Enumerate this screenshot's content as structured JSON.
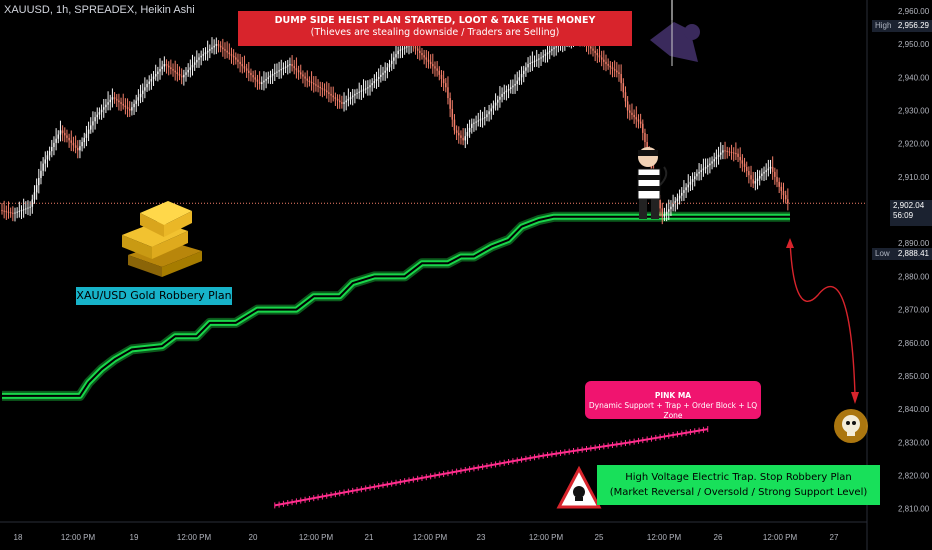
{
  "header": {
    "symbol": "XAUUSD, 1h, SPREADEX, Heikin Ashi"
  },
  "annotations": {
    "banner_line1": "DUMP SIDE HEIST PLAN STARTED, LOOT & TAKE THE MONEY",
    "banner_line2": "(Thieves are stealing downside / Traders are Selling)",
    "plan_label": "XAU/USD Gold Robbery Plan",
    "pink_title": "PINK MA",
    "pink_sub": "Dynamic Support + Trap + Order Block + LQ Zone",
    "green_line1": "High Voltage Electric Trap. Stop Robbery Plan",
    "green_line2": "(Market Reversal / Oversold / Strong Support Level)"
  },
  "price_tags": {
    "high_label": "High",
    "high_value": "2,956.29",
    "current_value": "2,902.04",
    "countdown": "56:09",
    "low_label": "Low",
    "low_value": "2,888.41"
  },
  "colors": {
    "bull": "#f5f5f5",
    "bear": "#f47f6a",
    "green_band": "#19d64a",
    "pink_ma": "#ff2d8c",
    "arrow": "#d8242c"
  },
  "chart_data": {
    "type": "candlestick",
    "style": "Heikin Ashi",
    "y_axis": {
      "ticks": [
        "2,810.00",
        "2,820.00",
        "2,830.00",
        "2,840.00",
        "2,850.00",
        "2,860.00",
        "2,870.00",
        "2,880.00",
        "2,890.00",
        "2,900.00",
        "2,910.00",
        "2,920.00",
        "2,930.00",
        "2,940.00",
        "2,950.00",
        "2,960.00"
      ],
      "range": [
        2806,
        2963
      ]
    },
    "x_axis": {
      "ticks": [
        "18",
        "12:00 PM",
        "19",
        "12:00 PM",
        "20",
        "12:00 PM",
        "21",
        "12:00 PM",
        "23",
        "12:00 PM",
        "25",
        "12:00 PM",
        "26",
        "12:00 PM",
        "27"
      ]
    },
    "current_price": 2902.04,
    "price_path": [
      [
        0,
        2900
      ],
      [
        6,
        2899
      ],
      [
        14,
        2901
      ],
      [
        20,
        2914
      ],
      [
        28,
        2924
      ],
      [
        36,
        2918
      ],
      [
        44,
        2928
      ],
      [
        52,
        2934
      ],
      [
        60,
        2930
      ],
      [
        68,
        2938
      ],
      [
        76,
        2944
      ],
      [
        84,
        2940
      ],
      [
        92,
        2946
      ],
      [
        100,
        2950
      ],
      [
        108,
        2946
      ],
      [
        114,
        2942
      ],
      [
        120,
        2938
      ],
      [
        126,
        2941
      ],
      [
        134,
        2944
      ],
      [
        142,
        2939
      ],
      [
        150,
        2936
      ],
      [
        158,
        2932
      ],
      [
        164,
        2935
      ],
      [
        170,
        2937
      ],
      [
        178,
        2942
      ],
      [
        184,
        2948
      ],
      [
        190,
        2950
      ],
      [
        196,
        2946
      ],
      [
        202,
        2942
      ],
      [
        206,
        2937
      ],
      [
        210,
        2924
      ],
      [
        214,
        2921
      ],
      [
        218,
        2926
      ],
      [
        224,
        2928
      ],
      [
        232,
        2935
      ],
      [
        238,
        2938
      ],
      [
        244,
        2944
      ],
      [
        250,
        2946
      ],
      [
        256,
        2949
      ],
      [
        262,
        2951
      ],
      [
        268,
        2952
      ],
      [
        274,
        2948
      ],
      [
        280,
        2944
      ],
      [
        286,
        2941
      ],
      [
        290,
        2930
      ],
      [
        296,
        2926
      ],
      [
        300,
        2915
      ],
      [
        304,
        2903
      ],
      [
        306,
        2898
      ],
      [
        310,
        2901
      ],
      [
        316,
        2906
      ],
      [
        322,
        2911
      ],
      [
        328,
        2914
      ],
      [
        334,
        2918
      ],
      [
        340,
        2917
      ],
      [
        344,
        2913
      ],
      [
        348,
        2908
      ],
      [
        352,
        2911
      ],
      [
        356,
        2913
      ],
      [
        360,
        2907
      ],
      [
        364,
        2902
      ]
    ],
    "green_band_steps": [
      [
        0,
        2844
      ],
      [
        36,
        2844
      ],
      [
        40,
        2848
      ],
      [
        46,
        2852
      ],
      [
        52,
        2855
      ],
      [
        60,
        2858
      ],
      [
        74,
        2859
      ],
      [
        80,
        2862
      ],
      [
        90,
        2862
      ],
      [
        96,
        2866
      ],
      [
        108,
        2866
      ],
      [
        118,
        2870
      ],
      [
        136,
        2870
      ],
      [
        144,
        2874
      ],
      [
        156,
        2874
      ],
      [
        162,
        2878
      ],
      [
        172,
        2880
      ],
      [
        186,
        2880
      ],
      [
        194,
        2884
      ],
      [
        206,
        2884
      ],
      [
        212,
        2886
      ],
      [
        218,
        2886
      ],
      [
        226,
        2889
      ],
      [
        234,
        2891
      ],
      [
        240,
        2895
      ],
      [
        248,
        2897
      ],
      [
        255,
        2898
      ],
      [
        364,
        2898
      ]
    ],
    "pink_ma": [
      [
        126,
        2811
      ],
      [
        200,
        2820
      ],
      [
        250,
        2826
      ],
      [
        290,
        2830
      ],
      [
        326,
        2834
      ]
    ]
  }
}
